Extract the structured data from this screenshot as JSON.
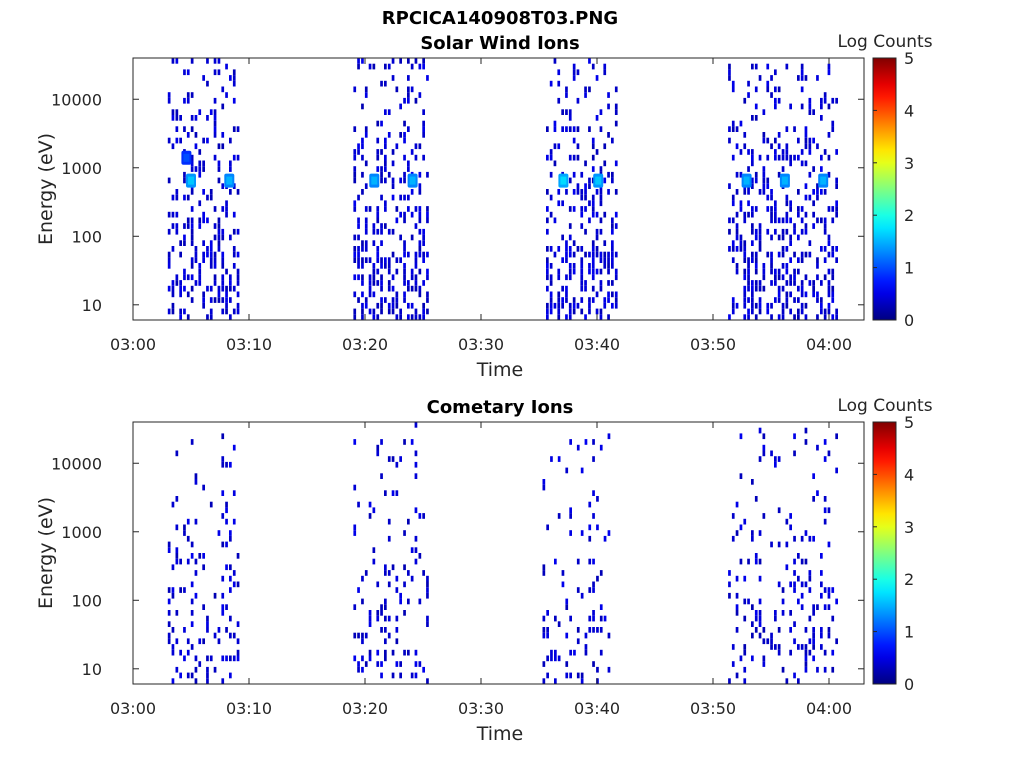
{
  "figure_title": "RPCICA140908T03.PNG",
  "chart_data": [
    {
      "type": "heatmap",
      "title": "Solar Wind Ions",
      "xlabel": "Time",
      "ylabel": "Energy (eV)",
      "xlim": [
        "03:00",
        "04:03"
      ],
      "ylim": [
        6,
        40000
      ],
      "yscale": "log",
      "xticks": [
        "03:00",
        "03:10",
        "03:20",
        "03:30",
        "03:40",
        "03:50",
        "04:00"
      ],
      "yticks": [
        "10",
        "100",
        "1000",
        "10000"
      ],
      "colorbar": {
        "label": "Log Counts",
        "range": [
          0,
          5
        ],
        "ticks": [
          "0",
          "1",
          "2",
          "3",
          "4",
          "5"
        ],
        "colormap": "jet"
      },
      "grid": false,
      "bursts": [
        {
          "start_min": 3.0,
          "end_min": 9.0,
          "max_energy_ev": 35000,
          "peaks": [
            {
              "time_min": 5.0,
              "energy_ev": 650,
              "log_counts": 1.6
            },
            {
              "time_min": 8.3,
              "energy_ev": 650,
              "log_counts": 1.5
            },
            {
              "time_min": 4.6,
              "energy_ev": 1400,
              "log_counts": 1.0
            }
          ]
        },
        {
          "start_min": 19.0,
          "end_min": 25.3,
          "max_energy_ev": 40000,
          "peaks": [
            {
              "time_min": 20.8,
              "energy_ev": 650,
              "log_counts": 1.5
            },
            {
              "time_min": 24.1,
              "energy_ev": 650,
              "log_counts": 1.5
            }
          ]
        },
        {
          "start_min": 35.6,
          "end_min": 41.7,
          "max_energy_ev": 40000,
          "peaks": [
            {
              "time_min": 37.1,
              "energy_ev": 650,
              "log_counts": 1.7
            },
            {
              "time_min": 40.1,
              "energy_ev": 650,
              "log_counts": 1.6
            }
          ]
        },
        {
          "start_min": 51.3,
          "end_min": 60.7,
          "max_energy_ev": 30000,
          "peaks": [
            {
              "time_min": 52.9,
              "energy_ev": 650,
              "log_counts": 1.5
            },
            {
              "time_min": 56.2,
              "energy_ev": 650,
              "log_counts": 1.5
            },
            {
              "time_min": 59.5,
              "energy_ev": 650,
              "log_counts": 1.5
            }
          ]
        }
      ]
    },
    {
      "type": "heatmap",
      "title": "Cometary Ions",
      "xlabel": "Time",
      "ylabel": "Energy (eV)",
      "xlim": [
        "03:00",
        "04:03"
      ],
      "ylim": [
        6,
        40000
      ],
      "yscale": "log",
      "xticks": [
        "03:00",
        "03:10",
        "03:20",
        "03:30",
        "03:40",
        "03:50",
        "04:00"
      ],
      "yticks": [
        "10",
        "100",
        "1000",
        "10000"
      ],
      "colorbar": {
        "label": "Log Counts",
        "range": [
          0,
          5
        ],
        "ticks": [
          "0",
          "1",
          "2",
          "3",
          "4",
          "5"
        ],
        "colormap": "jet"
      },
      "grid": false,
      "bursts": [
        {
          "start_min": 3.0,
          "end_min": 9.0,
          "max_energy_ev": 30000,
          "peaks": []
        },
        {
          "start_min": 19.0,
          "end_min": 25.3,
          "max_energy_ev": 35000,
          "peaks": []
        },
        {
          "start_min": 35.3,
          "end_min": 41.0,
          "max_energy_ev": 30000,
          "peaks": []
        },
        {
          "start_min": 51.3,
          "end_min": 60.7,
          "max_energy_ev": 30000,
          "peaks": []
        }
      ]
    }
  ]
}
